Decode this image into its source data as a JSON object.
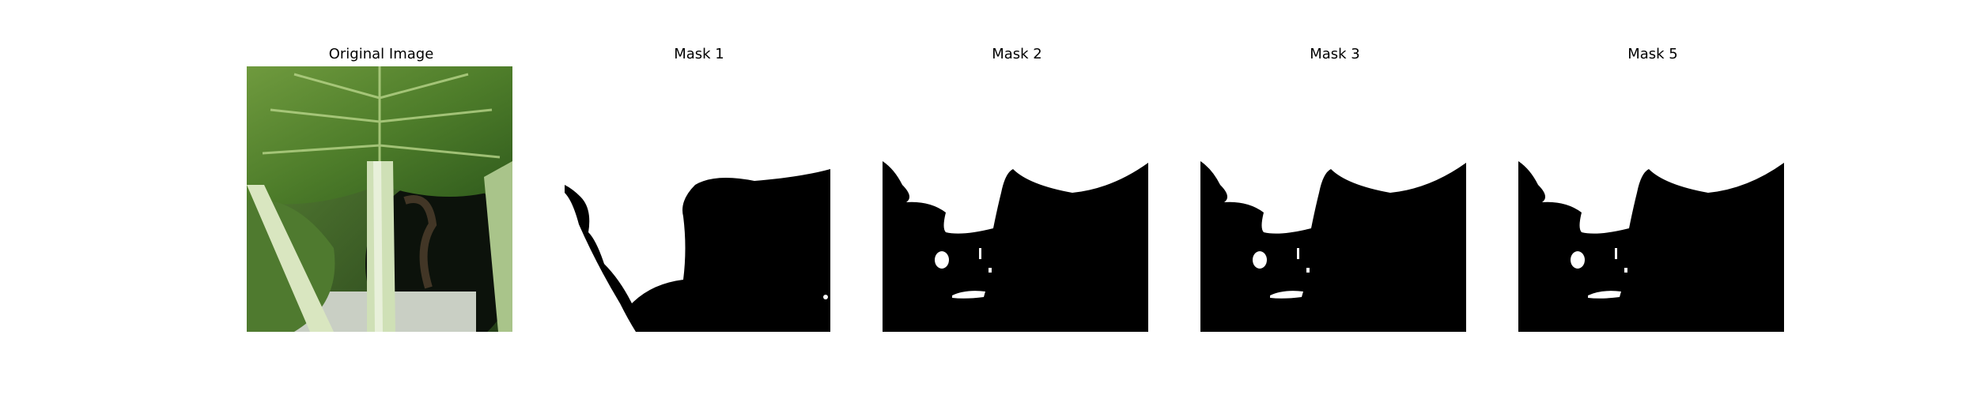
{
  "panels": [
    {
      "title": "Original Image"
    },
    {
      "title": "Mask 1"
    },
    {
      "title": "Mask 2"
    },
    {
      "title": "Mask 3"
    },
    {
      "title": "Mask 5"
    }
  ]
}
